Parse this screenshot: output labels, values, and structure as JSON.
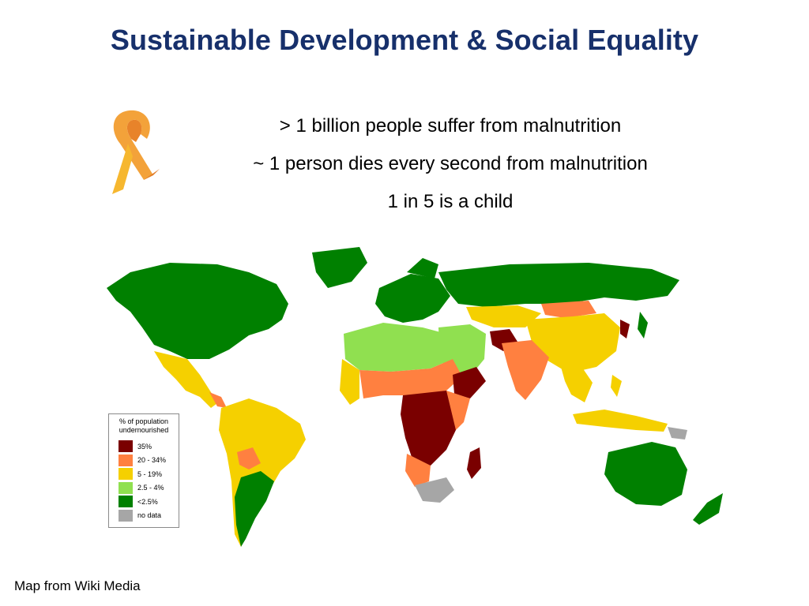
{
  "slide": {
    "title": "Sustainable Development & Social Equality",
    "bullets": [
      "> 1 billion people suffer from malnutrition",
      "~ 1 person dies every second from malnutrition",
      "1 in 5 is a child"
    ],
    "credit": "Map from Wiki Media"
  },
  "legend": {
    "title_line1": "% of population",
    "title_line2": "undernourished",
    "items": [
      {
        "label": "35%",
        "color": "#7a0000"
      },
      {
        "label": "20 - 34%",
        "color": "#ff8040"
      },
      {
        "label": "5 - 19%",
        "color": "#f5d000"
      },
      {
        "label": "2.5 - 4%",
        "color": "#90e050"
      },
      {
        "label": "<2.5%",
        "color": "#008000"
      },
      {
        "label": "no data",
        "color": "#a6a6a6"
      }
    ]
  },
  "colors": {
    "title": "#17306b",
    "ribbon_light": "#f7b733",
    "ribbon_dark": "#e8832a"
  }
}
